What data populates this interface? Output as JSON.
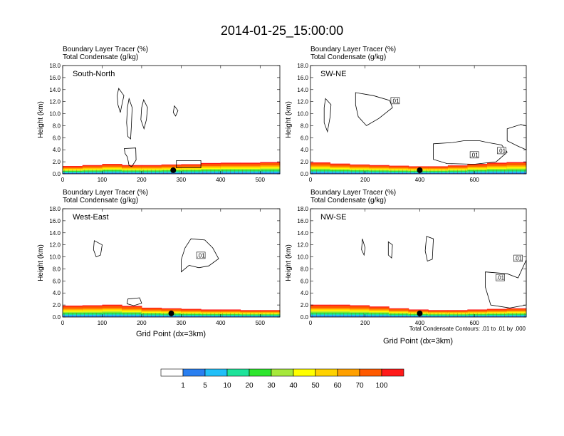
{
  "figure": {
    "title": "2014-01-25_15:00:00",
    "header_line1": "Boundary Layer Tracer   (%)",
    "header_line2": "Total Condensate   (g/kg)",
    "ylabel": "Height (km)",
    "xlabel": "Grid Point (dx=3km)",
    "contour_note": "Total Condensate Contours: .01 to .01 by .000"
  },
  "colorbar": {
    "colors": [
      "#ffffff",
      "#2a7ff0",
      "#21bff8",
      "#1ee39a",
      "#2ee62e",
      "#a6e83c",
      "#ffff00",
      "#ffd200",
      "#ffa000",
      "#ff5a00",
      "#ff1a1a"
    ],
    "labels": [
      "1",
      "5",
      "10",
      "20",
      "30",
      "40",
      "50",
      "60",
      "70",
      "100"
    ]
  },
  "chart_data": [
    {
      "type": "heatmap",
      "panel": "South-North",
      "title": "South-North",
      "xlabel": "",
      "ylabel": "Height (km)",
      "xlim": [
        0,
        550
      ],
      "ylim": [
        0,
        18
      ],
      "xticks": [
        0,
        100,
        200,
        300,
        400,
        500
      ],
      "yticks": [
        0,
        2,
        4,
        6,
        8,
        10,
        12,
        14,
        16,
        18
      ],
      "tracer_top_km": [
        1.4,
        1.2,
        1.7,
        1.6,
        1.3,
        1.6,
        1.5,
        1.7,
        1.9,
        1.8,
        1.9,
        2.0
      ],
      "marker_x": 280,
      "contour_labels": []
    },
    {
      "type": "heatmap",
      "panel": "SW-NE",
      "title": "SW-NE",
      "xlabel": "",
      "ylabel": "Height (km)",
      "xlim": [
        0,
        790
      ],
      "ylim": [
        0,
        18
      ],
      "xticks": [
        0,
        200,
        400,
        600
      ],
      "yticks": [
        0,
        2,
        4,
        6,
        8,
        10,
        12,
        14,
        16,
        18
      ],
      "tracer_top_km": [
        2.0,
        1.8,
        1.6,
        1.5,
        1.4,
        1.3,
        1.2,
        1.3,
        1.5,
        1.8,
        1.9,
        2.0
      ],
      "marker_x": 400,
      "contour_labels": [
        ".01",
        ".01",
        ".01"
      ]
    },
    {
      "type": "heatmap",
      "panel": "West-East",
      "title": "West-East",
      "xlabel": "Grid Point (dx=3km)",
      "ylabel": "Height (km)",
      "xlim": [
        0,
        550
      ],
      "ylim": [
        0,
        18
      ],
      "xticks": [
        0,
        100,
        200,
        300,
        400,
        500
      ],
      "yticks": [
        0,
        2,
        4,
        6,
        8,
        10,
        12,
        14,
        16,
        18
      ],
      "tracer_top_km": [
        2.0,
        1.8,
        2.1,
        2.0,
        1.7,
        1.4,
        1.5,
        1.2,
        1.3,
        1.2,
        1.1,
        1.2
      ],
      "marker_x": 275,
      "contour_labels": [
        ".01"
      ]
    },
    {
      "type": "heatmap",
      "panel": "NW-SE",
      "title": "NW-SE",
      "xlabel": "Grid Point (dx=3km)",
      "ylabel": "Height (km)",
      "xlim": [
        0,
        790
      ],
      "ylim": [
        0,
        18
      ],
      "xticks": [
        0,
        200,
        400,
        600
      ],
      "yticks": [
        0,
        2,
        4,
        6,
        8,
        10,
        12,
        14,
        16,
        18
      ],
      "tracer_top_km": [
        2.0,
        2.1,
        2.0,
        1.9,
        1.6,
        1.3,
        1.2,
        1.1,
        1.2,
        1.3,
        1.4,
        1.5
      ],
      "marker_x": 400,
      "contour_labels": [
        ".01",
        ".01"
      ]
    }
  ]
}
